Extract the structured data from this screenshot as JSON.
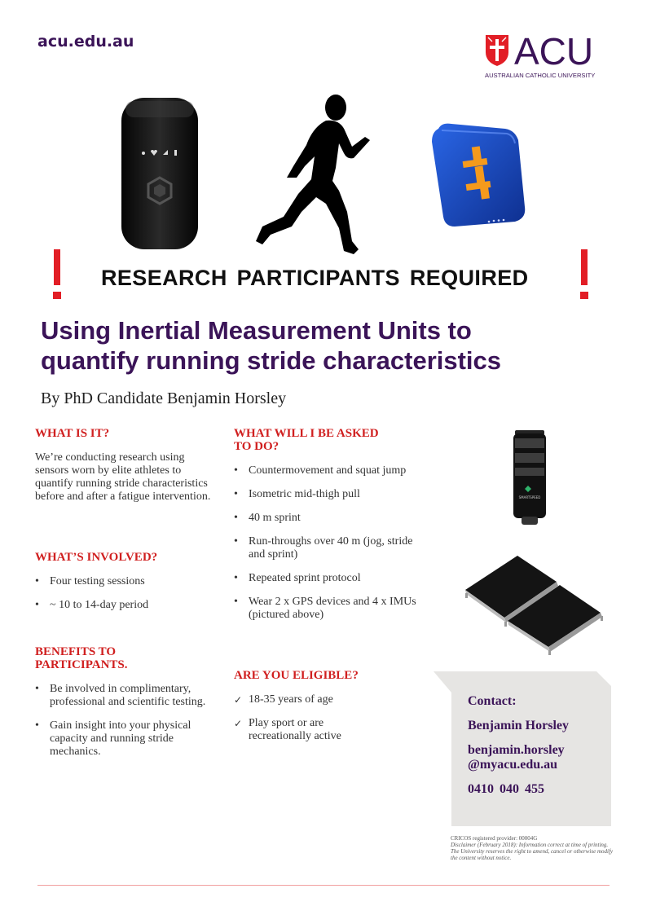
{
  "header": {
    "site_url": "acu.edu.au"
  },
  "logo": {
    "word": "ACU",
    "subtitle": "AUSTRALIAN CATHOLIC UNIVERSITY"
  },
  "banner": "RESEARCH PARTICIPANTS REQUIRED",
  "title_line1": "Using Inertial Measurement Units to",
  "title_line2": "quantify running stride characteristics",
  "byline": "By PhD Candidate Benjamin Horsley",
  "col1": {
    "what_heading": "WHAT IS IT?",
    "what_text": "We’re conducting research using sensors worn by elite athletes to quantify running stride characteristics before and after a fatigue intervention.",
    "involved_heading": "WHAT’S INVOLVED?",
    "involved_items": [
      "Four testing sessions",
      "~ 10 to 14-day period"
    ],
    "benefits_heading_1": "BENEFITS TO",
    "benefits_heading_2": "PARTICIPANTS.",
    "benefits_items": [
      "Be involved in complimentary, professional and scientific testing.",
      "Gain insight into your physical capacity and running stride mechanics."
    ]
  },
  "col2": {
    "asked_heading_1": "WHAT WILL I BE ASKED",
    "asked_heading_2": "TO DO?",
    "asked_items": [
      "Countermovement and squat jump",
      "Isometric mid-thigh pull",
      "40 m sprint",
      "Run-throughs over 40 m (jog, stride and sprint)",
      "Repeated sprint protocol",
      "Wear 2 x GPS devices and 4 x IMUs (pictured above)"
    ],
    "eligible_heading": "ARE YOU ELIGIBLE?",
    "eligible_items": [
      "18-35 years of age",
      "Play sport or are recreationally active"
    ]
  },
  "devices": {
    "gps_icons": [
      "location-icon",
      "heart-icon",
      "signal-icon",
      "battery-icon"
    ],
    "smartspeed_label": "SMARTSPEED"
  },
  "contact": {
    "label": "Contact:",
    "name": "Benjamin Horsley",
    "email_1": "benjamin.horsley",
    "email_2": "@myacu.edu.au",
    "phone": "0410 040 455"
  },
  "footer": {
    "cricos": "CRICOS registered provider: 00004G",
    "disclaimer": "Disclaimer (February 2018): Information correct at time of printing. The University reserves the right to amend, cancel or otherwise modify the content without notice."
  },
  "colors": {
    "purple": "#3b1458",
    "red": "#e21e26",
    "heading_red": "#d01f1f",
    "imu_blue": "#1a4fd0",
    "imu_orange": "#f59a1c"
  }
}
